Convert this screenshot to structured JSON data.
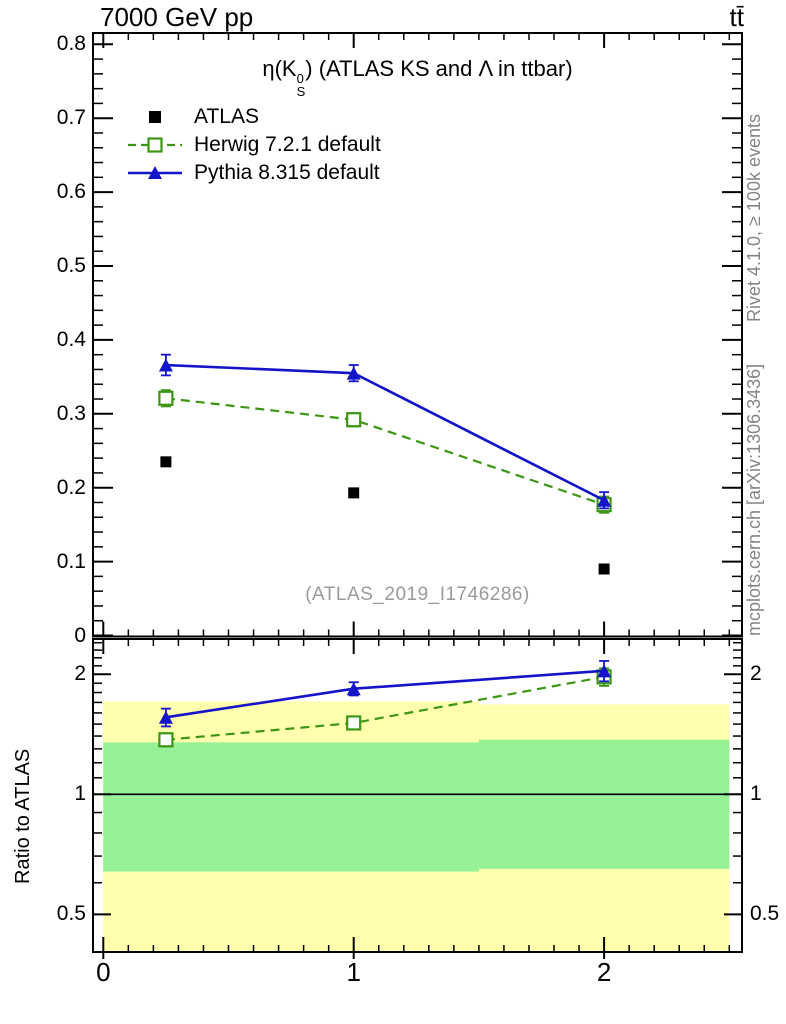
{
  "header": {
    "collision": "7000 GeV pp",
    "process_label": "tt̄"
  },
  "titles": {
    "observable_prefix": "η(K",
    "observable_sup": "0",
    "observable_sub": "S",
    "observable_suffix": ") (ATLAS KS and Λ in ttbar)",
    "watermark": "(ATLAS_2019_I1746286)"
  },
  "side_labels": {
    "rivet": "Rivet 4.1.0, ≥ 100k events",
    "mcplots": "mcplots.cern.ch [arXiv:1306.3436]",
    "ratio_axis_label": "Ratio to ATLAS"
  },
  "legend": [
    {
      "label": "ATLAS",
      "marker": "filled-square",
      "color": "#000000",
      "line": "none"
    },
    {
      "label": "Herwig 7.2.1 default",
      "marker": "open-square",
      "color": "#3c9614",
      "line": "dashed"
    },
    {
      "label": "Pythia 8.315 default",
      "marker": "filled-triangle",
      "color": "#1414c8",
      "line": "solid"
    }
  ],
  "chart_data": {
    "type": "line",
    "title": "η(K0S) (ATLAS KS and Λ in ttbar)",
    "x": [
      0.25,
      1.0,
      2.0
    ],
    "xlim": [
      -0.04,
      2.55
    ],
    "x_major_ticks": [
      0,
      1,
      2
    ],
    "x_tick_labels": [
      "0",
      "1",
      "2"
    ],
    "x_minor_step": 0.1,
    "main_panel": {
      "ylim": [
        0,
        0.816
      ],
      "y_major_ticks": [
        0,
        0.1,
        0.2,
        0.3,
        0.4,
        0.5,
        0.6,
        0.7,
        0.8
      ],
      "y_tick_labels": [
        "0",
        "0.1",
        "0.2",
        "0.3",
        "0.4",
        "0.5",
        "0.6",
        "0.7",
        "0.8"
      ],
      "y_minor_step": 0.02,
      "series": [
        {
          "name": "ATLAS",
          "marker": "filled-square",
          "color": "#000000",
          "line": "none",
          "values": [
            0.235,
            0.193,
            0.09
          ],
          "errors": [
            0,
            0,
            0
          ]
        },
        {
          "name": "Herwig 7.2.1 default",
          "marker": "open-square",
          "color": "#3c9614",
          "line": "dashed",
          "values": [
            0.321,
            0.292,
            0.177
          ],
          "errors": [
            0.011,
            0.009,
            0.011
          ]
        },
        {
          "name": "Pythia 8.315 default",
          "marker": "filled-triangle",
          "color": "#1414c8",
          "line": "solid",
          "values": [
            0.366,
            0.355,
            0.183
          ],
          "errors": [
            0.014,
            0.011,
            0.011
          ]
        }
      ]
    },
    "ratio_panel": {
      "ylabel": "Ratio to ATLAS",
      "yscale": "log",
      "ylim": [
        0.4,
        2.45
      ],
      "y_major_ticks": [
        0.5,
        1,
        2
      ],
      "y_tick_labels": [
        "0.5",
        "1",
        "2"
      ],
      "y_minor_ticks": [
        0.6,
        0.7,
        0.8,
        0.9,
        1.1,
        1.2,
        1.3,
        1.4,
        1.5,
        1.6,
        1.7,
        1.8,
        1.9,
        2.1,
        2.2,
        2.3,
        2.4
      ],
      "reference_line": 1,
      "series": [
        {
          "name": "Herwig 7.2.1 default",
          "values": [
            1.37,
            1.51,
            1.97
          ],
          "errors": [
            0.05,
            0.04,
            0.1
          ]
        },
        {
          "name": "Pythia 8.315 default",
          "values": [
            1.56,
            1.84,
            2.04
          ],
          "errors": [
            0.08,
            0.07,
            0.12
          ]
        }
      ],
      "bands": [
        {
          "x_range": [
            0,
            1.5
          ],
          "yellow": [
            0.4,
            1.71
          ],
          "green": [
            0.64,
            1.35
          ]
        },
        {
          "x_range": [
            1.5,
            2.5
          ],
          "yellow": [
            0.4,
            1.68
          ],
          "green": [
            0.65,
            1.37
          ]
        }
      ],
      "band_colors": {
        "yellow": "#ffffad",
        "green": "#96f096"
      }
    }
  }
}
